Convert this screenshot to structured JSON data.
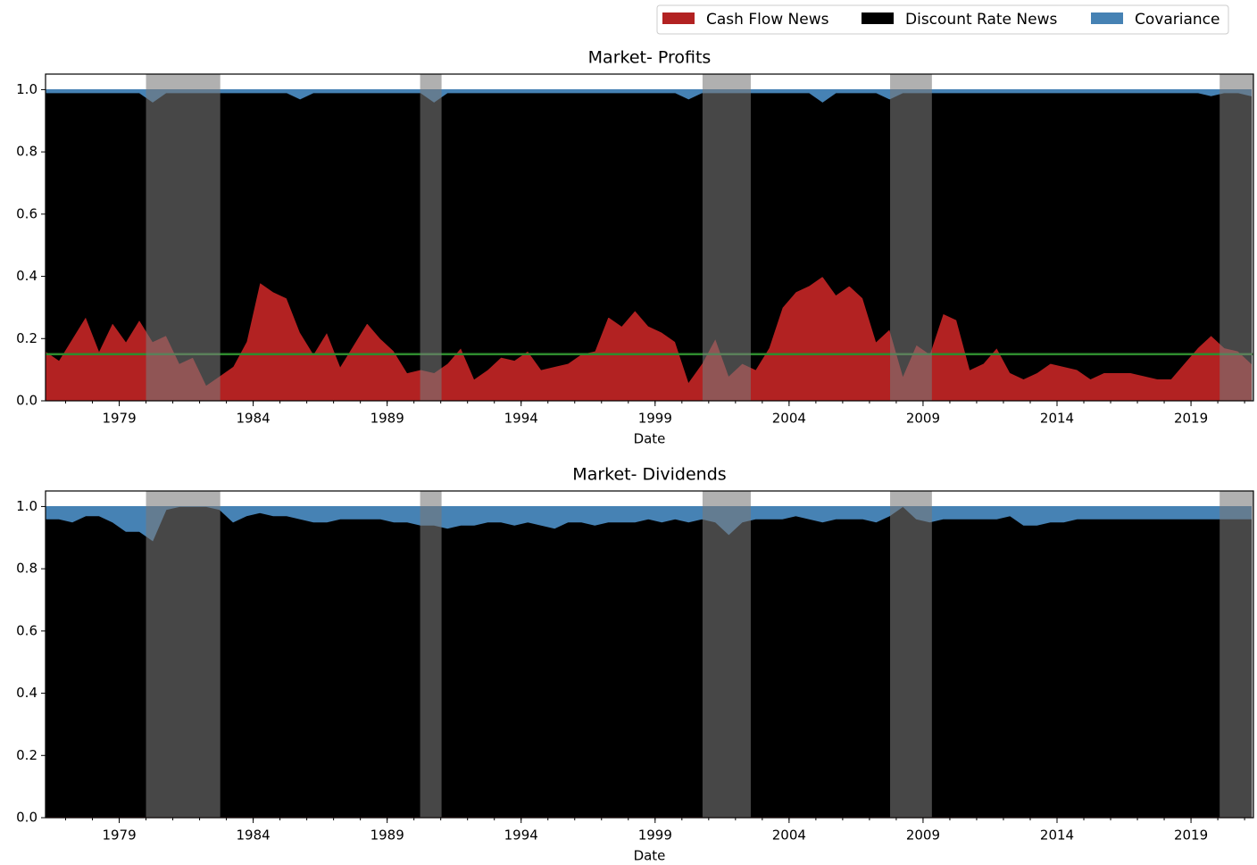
{
  "chart_data": [
    {
      "type": "stacked_area",
      "title": "Market- Profits",
      "x_label": "Date",
      "legend_loc": "upper right",
      "x": [
        1976.25,
        1976.75,
        1977.25,
        1977.75,
        1978.25,
        1978.75,
        1979.25,
        1979.75,
        1980.25,
        1980.75,
        1981.25,
        1981.75,
        1982.25,
        1982.75,
        1983.25,
        1983.75,
        1984.25,
        1984.75,
        1985.25,
        1985.75,
        1986.25,
        1986.75,
        1987.25,
        1987.75,
        1988.25,
        1988.75,
        1989.25,
        1989.75,
        1990.25,
        1990.75,
        1991.25,
        1991.75,
        1992.25,
        1992.75,
        1993.25,
        1993.75,
        1994.25,
        1994.75,
        1995.25,
        1995.75,
        1996.25,
        1996.75,
        1997.25,
        1997.75,
        1998.25,
        1998.75,
        1999.25,
        1999.75,
        2000.25,
        2000.75,
        2001.25,
        2001.75,
        2002.25,
        2002.75,
        2003.25,
        2003.75,
        2004.25,
        2004.75,
        2005.25,
        2005.75,
        2006.25,
        2006.75,
        2007.25,
        2007.75,
        2008.25,
        2008.75,
        2009.25,
        2009.75,
        2010.25,
        2010.75,
        2011.25,
        2011.75,
        2012.25,
        2012.75,
        2013.25,
        2013.75,
        2014.25,
        2014.75,
        2015.25,
        2015.75,
        2016.25,
        2016.75,
        2017.25,
        2017.75,
        2018.25,
        2018.75,
        2019.25,
        2019.75,
        2020.25,
        2020.75,
        2021.25
      ],
      "series": [
        {
          "name": "Cash Flow News",
          "color": "#b22222",
          "values": [
            0.16,
            0.13,
            0.2,
            0.27,
            0.16,
            0.25,
            0.19,
            0.26,
            0.19,
            0.21,
            0.12,
            0.14,
            0.05,
            0.08,
            0.11,
            0.19,
            0.38,
            0.35,
            0.33,
            0.22,
            0.15,
            0.22,
            0.11,
            0.18,
            0.25,
            0.2,
            0.16,
            0.09,
            0.1,
            0.09,
            0.12,
            0.17,
            0.07,
            0.1,
            0.14,
            0.13,
            0.16,
            0.1,
            0.11,
            0.12,
            0.15,
            0.16,
            0.27,
            0.24,
            0.29,
            0.24,
            0.22,
            0.19,
            0.06,
            0.12,
            0.2,
            0.08,
            0.12,
            0.1,
            0.17,
            0.3,
            0.35,
            0.37,
            0.4,
            0.34,
            0.37,
            0.33,
            0.19,
            0.23,
            0.08,
            0.18,
            0.15,
            0.28,
            0.26,
            0.1,
            0.12,
            0.17,
            0.09,
            0.07,
            0.09,
            0.12,
            0.11,
            0.1,
            0.07,
            0.09,
            0.09,
            0.09,
            0.08,
            0.07,
            0.07,
            0.12,
            0.17,
            0.21,
            0.17,
            0.16,
            0.12
          ]
        },
        {
          "name": "Discount Rate News",
          "color": "#000000",
          "values": [
            0.83,
            0.86,
            0.79,
            0.72,
            0.83,
            0.74,
            0.8,
            0.73,
            0.77,
            0.78,
            0.87,
            0.85,
            0.94,
            0.91,
            0.88,
            0.8,
            0.61,
            0.64,
            0.66,
            0.75,
            0.84,
            0.77,
            0.88,
            0.81,
            0.74,
            0.79,
            0.83,
            0.9,
            0.89,
            0.87,
            0.87,
            0.82,
            0.92,
            0.89,
            0.85,
            0.86,
            0.83,
            0.89,
            0.88,
            0.87,
            0.84,
            0.83,
            0.72,
            0.75,
            0.7,
            0.75,
            0.77,
            0.8,
            0.91,
            0.87,
            0.79,
            0.91,
            0.87,
            0.89,
            0.82,
            0.69,
            0.64,
            0.62,
            0.56,
            0.65,
            0.62,
            0.66,
            0.8,
            0.74,
            0.91,
            0.81,
            0.84,
            0.71,
            0.73,
            0.89,
            0.87,
            0.82,
            0.9,
            0.92,
            0.9,
            0.87,
            0.88,
            0.89,
            0.92,
            0.9,
            0.9,
            0.9,
            0.91,
            0.92,
            0.92,
            0.87,
            0.82,
            0.77,
            0.82,
            0.83,
            0.86
          ]
        },
        {
          "name": "Covariance",
          "color": "#4682b4",
          "values": [
            0.01,
            0.01,
            0.01,
            0.01,
            0.01,
            0.01,
            0.01,
            0.01,
            0.04,
            0.01,
            0.01,
            0.01,
            0.01,
            0.01,
            0.01,
            0.01,
            0.01,
            0.01,
            0.01,
            0.03,
            0.01,
            0.01,
            0.01,
            0.01,
            0.01,
            0.01,
            0.01,
            0.01,
            0.01,
            0.04,
            0.01,
            0.01,
            0.01,
            0.01,
            0.01,
            0.01,
            0.01,
            0.01,
            0.01,
            0.01,
            0.01,
            0.01,
            0.01,
            0.01,
            0.01,
            0.01,
            0.01,
            0.01,
            0.03,
            0.01,
            0.01,
            0.01,
            0.01,
            0.01,
            0.01,
            0.01,
            0.01,
            0.01,
            0.04,
            0.01,
            0.01,
            0.01,
            0.01,
            0.03,
            0.01,
            0.01,
            0.01,
            0.01,
            0.01,
            0.01,
            0.01,
            0.01,
            0.01,
            0.01,
            0.01,
            0.01,
            0.01,
            0.01,
            0.01,
            0.01,
            0.01,
            0.01,
            0.01,
            0.01,
            0.01,
            0.01,
            0.01,
            0.02,
            0.01,
            0.01,
            0.02
          ]
        }
      ],
      "hline": {
        "value": 0.15,
        "color": "#2e8b2e"
      },
      "shaded_spans": [
        [
          1980.0,
          1982.77
        ],
        [
          1990.23,
          1991.03
        ],
        [
          2000.77,
          2002.57
        ],
        [
          2007.77,
          2009.33
        ],
        [
          2020.07,
          2021.33
        ]
      ],
      "xlim": [
        1976.25,
        2021.33
      ],
      "xticks": [
        1979,
        1984,
        1989,
        1994,
        1999,
        2004,
        2009,
        2014,
        2019
      ],
      "ylim": [
        0,
        1.05
      ],
      "yticks": [
        {
          "value": 0,
          "label": "0.0"
        },
        0.2,
        0.4,
        0.6,
        0.8,
        {
          "value": 1,
          "label": "1.0"
        }
      ]
    },
    {
      "type": "stacked_area",
      "title": "Market- Dividends",
      "x_label": "Date",
      "x": [
        1976.25,
        1976.75,
        1977.25,
        1977.75,
        1978.25,
        1978.75,
        1979.25,
        1979.75,
        1980.25,
        1980.75,
        1981.25,
        1981.75,
        1982.25,
        1982.75,
        1983.25,
        1983.75,
        1984.25,
        1984.75,
        1985.25,
        1985.75,
        1986.25,
        1986.75,
        1987.25,
        1987.75,
        1988.25,
        1988.75,
        1989.25,
        1989.75,
        1990.25,
        1990.75,
        1991.25,
        1991.75,
        1992.25,
        1992.75,
        1993.25,
        1993.75,
        1994.25,
        1994.75,
        1995.25,
        1995.75,
        1996.25,
        1996.75,
        1997.25,
        1997.75,
        1998.25,
        1998.75,
        1999.25,
        1999.75,
        2000.25,
        2000.75,
        2001.25,
        2001.75,
        2002.25,
        2002.75,
        2003.25,
        2003.75,
        2004.25,
        2004.75,
        2005.25,
        2005.75,
        2006.25,
        2006.75,
        2007.25,
        2007.75,
        2008.25,
        2008.75,
        2009.25,
        2009.75,
        2010.25,
        2010.75,
        2011.25,
        2011.75,
        2012.25,
        2012.75,
        2013.25,
        2013.75,
        2014.25,
        2014.75,
        2015.25,
        2015.75,
        2016.25,
        2016.75,
        2017.25,
        2017.75,
        2018.25,
        2018.75,
        2019.25,
        2019.75,
        2020.25,
        2020.75,
        2021.25
      ],
      "series": [
        {
          "name": "Cash Flow News",
          "color": "#b22222",
          "values": [
            0.003,
            0.003,
            0.003,
            0.003,
            0.003,
            0.003,
            0.003,
            0.003,
            0.003,
            0.003,
            0.003,
            0.003,
            0.003,
            0.003,
            0.003,
            0.003,
            0.003,
            0.003,
            0.003,
            0.003,
            0.003,
            0.003,
            0.003,
            0.003,
            0.003,
            0.003,
            0.003,
            0.003,
            0.003,
            0.003,
            0.003,
            0.003,
            0.003,
            0.003,
            0.003,
            0.003,
            0.003,
            0.003,
            0.003,
            0.003,
            0.003,
            0.003,
            0.003,
            0.003,
            0.003,
            0.003,
            0.003,
            0.003,
            0.003,
            0.003,
            0.003,
            0.003,
            0.003,
            0.003,
            0.003,
            0.003,
            0.003,
            0.003,
            0.003,
            0.003,
            0.003,
            0.003,
            0.003,
            0.003,
            0.003,
            0.003,
            0.003,
            0.003,
            0.003,
            0.003,
            0.003,
            0.003,
            0.003,
            0.003,
            0.003,
            0.003,
            0.003,
            0.003,
            0.003,
            0.003,
            0.003,
            0.003,
            0.003,
            0.003,
            0.003,
            0.003,
            0.003,
            0.003,
            0.003,
            0.003,
            0.003
          ]
        },
        {
          "name": "Discount Rate News",
          "color": "#000000",
          "values": [
            0.957,
            0.957,
            0.947,
            0.967,
            0.967,
            0.947,
            0.917,
            0.917,
            0.887,
            0.987,
            0.997,
            0.997,
            0.997,
            0.987,
            0.947,
            0.967,
            0.977,
            0.967,
            0.967,
            0.957,
            0.947,
            0.947,
            0.957,
            0.957,
            0.957,
            0.957,
            0.947,
            0.947,
            0.937,
            0.937,
            0.927,
            0.937,
            0.937,
            0.947,
            0.947,
            0.937,
            0.947,
            0.937,
            0.927,
            0.947,
            0.947,
            0.937,
            0.947,
            0.947,
            0.947,
            0.957,
            0.947,
            0.957,
            0.947,
            0.957,
            0.947,
            0.907,
            0.947,
            0.957,
            0.957,
            0.957,
            0.967,
            0.957,
            0.947,
            0.957,
            0.957,
            0.957,
            0.947,
            0.967,
            0.997,
            0.957,
            0.947,
            0.957,
            0.957,
            0.957,
            0.957,
            0.957,
            0.967,
            0.937,
            0.937,
            0.947,
            0.947,
            0.957,
            0.957,
            0.957,
            0.957,
            0.957,
            0.957,
            0.957,
            0.957,
            0.957,
            0.957,
            0.957,
            0.957,
            0.957,
            0.957
          ]
        },
        {
          "name": "Covariance",
          "color": "#4682b4",
          "values": [
            0.04,
            0.04,
            0.05,
            0.03,
            0.03,
            0.05,
            0.08,
            0.08,
            0.11,
            0.01,
            0,
            0,
            0,
            0.01,
            0.05,
            0.03,
            0.02,
            0.03,
            0.03,
            0.04,
            0.05,
            0.05,
            0.04,
            0.04,
            0.04,
            0.04,
            0.05,
            0.05,
            0.06,
            0.06,
            0.07,
            0.06,
            0.06,
            0.05,
            0.05,
            0.06,
            0.05,
            0.06,
            0.07,
            0.05,
            0.05,
            0.06,
            0.05,
            0.05,
            0.05,
            0.04,
            0.05,
            0.04,
            0.05,
            0.04,
            0.05,
            0.09,
            0.05,
            0.04,
            0.04,
            0.04,
            0.03,
            0.04,
            0.05,
            0.04,
            0.04,
            0.04,
            0.05,
            0.03,
            0,
            0.04,
            0.05,
            0.04,
            0.04,
            0.04,
            0.04,
            0.04,
            0.03,
            0.06,
            0.06,
            0.05,
            0.05,
            0.04,
            0.04,
            0.04,
            0.04,
            0.04,
            0.04,
            0.04,
            0.04,
            0.04,
            0.04,
            0.04,
            0.04,
            0.04,
            0.04
          ]
        }
      ],
      "shaded_spans": [
        [
          1980.0,
          1982.77
        ],
        [
          1990.23,
          1991.03
        ],
        [
          2000.77,
          2002.57
        ],
        [
          2007.77,
          2009.33
        ],
        [
          2020.07,
          2021.33
        ]
      ],
      "xlim": [
        1976.25,
        2021.33
      ],
      "xticks": [
        1979,
        1984,
        1989,
        1994,
        1999,
        2004,
        2009,
        2014,
        2019
      ],
      "ylim": [
        0,
        1.05
      ],
      "yticks": [
        {
          "value": 0,
          "label": "0.0"
        },
        0.2,
        0.4,
        0.6,
        0.8,
        {
          "value": 1,
          "label": "1.0"
        }
      ]
    }
  ]
}
